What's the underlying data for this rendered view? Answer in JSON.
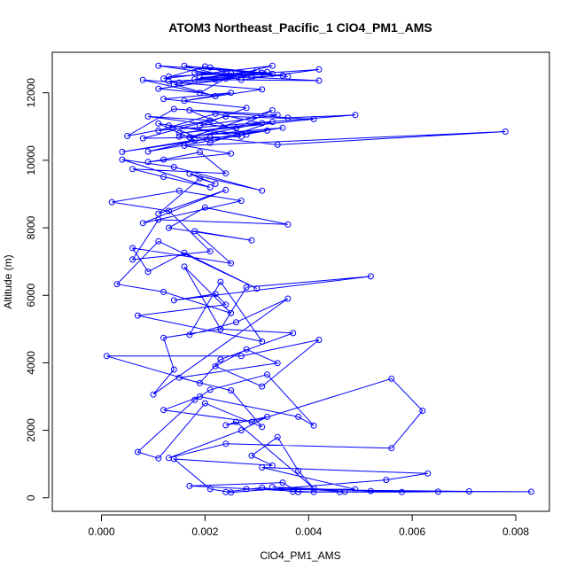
{
  "chart_data": {
    "type": "line",
    "title": "ATOM3 Northeast_Pacific_1 ClO4_PM1_AMS",
    "xlabel": "ClO4_PM1_AMS",
    "ylabel": "Altitude (m)",
    "xlim": [
      -0.00095,
      0.00865
    ],
    "ylim": [
      -400,
      13200
    ],
    "xticks": [
      0.0,
      0.002,
      0.004,
      0.006,
      0.008
    ],
    "xtick_labels": [
      "0.000",
      "0.002",
      "0.004",
      "0.006",
      "0.008"
    ],
    "yticks": [
      0,
      2000,
      4000,
      6000,
      8000,
      10000,
      12000
    ],
    "ytick_labels": [
      "0",
      "2000",
      "4000",
      "6000",
      "8000",
      "10000",
      "12000"
    ],
    "grid": false,
    "markers": "open-circle",
    "series": [
      {
        "color": "#0000ff",
        "x": [
          0.0024,
          0.0031,
          0.0037,
          0.0046,
          0.0058,
          0.0065,
          0.0083,
          0.0052,
          0.0033,
          0.0047,
          0.0041,
          0.0017,
          0.0035,
          0.0038,
          0.0071,
          0.0028,
          0.0049,
          0.0031,
          0.0063,
          0.0055,
          0.0025,
          0.0021,
          0.0014,
          0.0033,
          0.0029,
          0.0034,
          0.0038,
          0.0041,
          0.0026,
          0.0024,
          0.0032,
          0.0027,
          0.0013,
          0.0024,
          0.0056,
          0.0062,
          0.0056,
          0.0029,
          0.0012,
          0.0019,
          0.0038,
          0.0041,
          0.0032,
          0.0021,
          0.0018,
          0.0007,
          0.0011,
          0.002,
          0.0031,
          0.0025,
          0.0015,
          0.0034,
          0.0028,
          0.0022,
          0.0031,
          0.0042,
          0.0027,
          0.0001,
          0.0019,
          0.0023,
          0.0037,
          0.0023,
          0.0012,
          0.0014,
          0.001,
          0.0036,
          0.0026,
          0.0017,
          0.0023,
          0.0031,
          0.0007,
          0.0024,
          0.0022,
          0.0014,
          0.0052,
          0.0028,
          0.0023,
          0.0016,
          0.0025,
          0.0012,
          0.0003,
          0.0011,
          0.003,
          0.0016,
          0.0009,
          0.0006,
          0.0025,
          0.0018,
          0.0029,
          0.0013,
          0.002,
          0.0036,
          0.0011,
          0.0006,
          0.0021,
          0.0013,
          0.0002,
          0.0015,
          0.0027,
          0.0008,
          0.0024,
          0.0011,
          0.0019,
          0.0022,
          0.0017,
          0.0031,
          0.0014,
          0.0004,
          0.0021,
          0.0012,
          0.0006,
          0.0024,
          0.0019,
          0.0012,
          0.0009,
          0.0025,
          0.0016,
          0.0078,
          0.0034,
          0.0021,
          0.0009,
          0.0032,
          0.0015,
          0.0035,
          0.0004,
          0.0018,
          0.0011,
          0.0027,
          0.0008,
          0.0024,
          0.0041,
          0.0015,
          0.0033,
          0.0021,
          0.0013,
          0.0028,
          0.0017,
          0.0036,
          0.0049,
          0.0011,
          0.0022,
          0.0031,
          0.0017,
          0.0033,
          0.0026,
          0.0009,
          0.0021,
          0.0005,
          0.0014,
          0.0034,
          0.0019,
          0.0028,
          0.0012,
          0.0025,
          0.0016,
          0.0031,
          0.0008,
          0.0022,
          0.0014,
          0.0027,
          0.0011,
          0.0019,
          0.0024,
          0.0013,
          0.0035,
          0.0018,
          0.0029,
          0.0042,
          0.0022,
          0.0032,
          0.0013,
          0.0025,
          0.0015,
          0.003,
          0.0018,
          0.0033,
          0.0021,
          0.0036,
          0.0016,
          0.0027,
          0.0042,
          0.0019,
          0.0031,
          0.0011,
          0.0025,
          0.0033,
          0.0012,
          0.002,
          0.0024
        ],
        "y": [
          170,
          300,
          180,
          170,
          170,
          180,
          180,
          200,
          320,
          180,
          170,
          350,
          450,
          170,
          190,
          260,
          250,
          900,
          720,
          530,
          160,
          260,
          1150,
          960,
          1250,
          1800,
          800,
          280,
          2250,
          2150,
          2400,
          2000,
          1180,
          1600,
          1470,
          2580,
          3530,
          2250,
          2600,
          3000,
          2400,
          2140,
          3650,
          3200,
          2900,
          1360,
          1170,
          2800,
          2100,
          3180,
          3560,
          3990,
          4400,
          3900,
          3300,
          4680,
          4200,
          4200,
          3400,
          4100,
          4880,
          5000,
          4740,
          3800,
          3060,
          5900,
          5200,
          4830,
          6400,
          4630,
          5400,
          5720,
          6040,
          5850,
          6560,
          6240,
          5000,
          6850,
          5470,
          6100,
          6330,
          7600,
          6200,
          7260,
          6700,
          7400,
          6950,
          7900,
          7630,
          8000,
          8600,
          8100,
          8240,
          7060,
          7300,
          8500,
          8760,
          9100,
          8800,
          8140,
          9120,
          8420,
          9460,
          9300,
          9600,
          9100,
          9800,
          10020,
          9200,
          9510,
          9740,
          9610,
          10240,
          10020,
          9950,
          10200,
          10430,
          10850,
          10460,
          10680,
          10260,
          10880,
          10700,
          10960,
          10250,
          10600,
          11090,
          10700,
          10650,
          11300,
          11220,
          10800,
          11140,
          10520,
          11030,
          10760,
          11480,
          11260,
          11340,
          10880,
          11380,
          11100,
          10680,
          11480,
          10950,
          11300,
          11180,
          10720,
          11520,
          11340,
          11030,
          11550,
          11820,
          12000,
          11760,
          12100,
          12380,
          11900,
          12250,
          12460,
          12120,
          12000,
          12420,
          12340,
          12510,
          12600,
          12460,
          12360,
          12390,
          12620,
          12480,
          12580,
          12300,
          12670,
          12400,
          12560,
          12750,
          12480,
          12800,
          12380,
          12690,
          12450,
          12590,
          12800,
          12500,
          12800,
          12420,
          12780,
          12600
        ]
      }
    ]
  }
}
